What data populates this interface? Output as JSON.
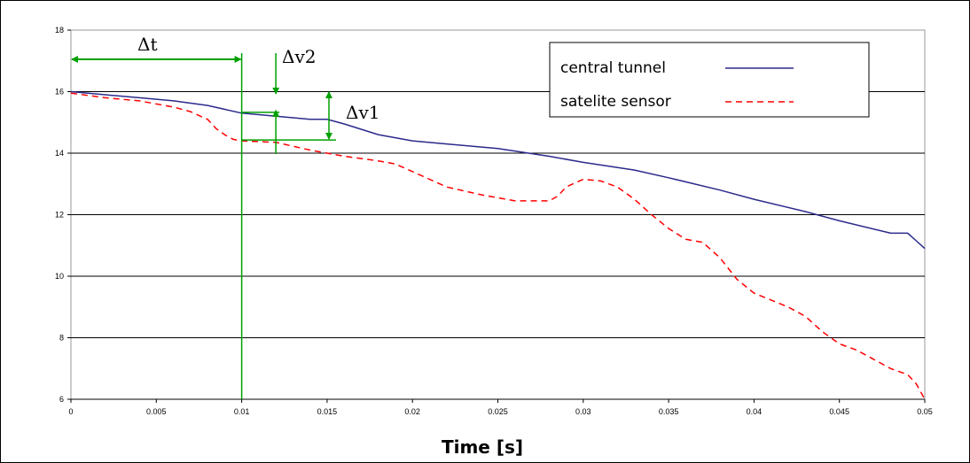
{
  "chart_data": {
    "type": "line",
    "title": "",
    "xlabel": "Time [s]",
    "ylabel": "",
    "xlim": [
      0,
      0.05
    ],
    "ylim": [
      6,
      18
    ],
    "grid": "horizontal",
    "legend_position": "top-right",
    "x_ticks": [
      {
        "value": 0,
        "label": "0"
      },
      {
        "value": 0.005,
        "label": "0.005"
      },
      {
        "value": 0.01,
        "label": "0.01"
      },
      {
        "value": 0.015,
        "label": "0.015"
      },
      {
        "value": 0.02,
        "label": "0.02"
      },
      {
        "value": 0.025,
        "label": "0.025"
      },
      {
        "value": 0.03,
        "label": "0.03"
      },
      {
        "value": 0.035,
        "label": "0.035"
      },
      {
        "value": 0.04,
        "label": "0.04"
      },
      {
        "value": 0.045,
        "label": "0.045"
      },
      {
        "value": 0.05,
        "label": "0.05"
      }
    ],
    "y_ticks": [
      {
        "value": 6,
        "label": "6"
      },
      {
        "value": 8,
        "label": "8"
      },
      {
        "value": 10,
        "label": "10"
      },
      {
        "value": 12,
        "label": "12"
      },
      {
        "value": 14,
        "label": "14"
      },
      {
        "value": 16,
        "label": "16"
      },
      {
        "value": 18,
        "label": "18"
      }
    ],
    "series": [
      {
        "name": "central tunnel",
        "color": "#2a2a8c",
        "style": "solid",
        "points": [
          [
            0,
            16.0
          ],
          [
            0.002,
            15.9
          ],
          [
            0.004,
            15.8
          ],
          [
            0.006,
            15.7
          ],
          [
            0.008,
            15.55
          ],
          [
            0.01,
            15.3
          ],
          [
            0.012,
            15.2
          ],
          [
            0.014,
            15.1
          ],
          [
            0.015,
            15.1
          ],
          [
            0.016,
            14.95
          ],
          [
            0.018,
            14.6
          ],
          [
            0.02,
            14.4
          ],
          [
            0.022,
            14.3
          ],
          [
            0.025,
            14.15
          ],
          [
            0.028,
            13.9
          ],
          [
            0.03,
            13.7
          ],
          [
            0.033,
            13.45
          ],
          [
            0.035,
            13.2
          ],
          [
            0.038,
            12.8
          ],
          [
            0.04,
            12.5
          ],
          [
            0.043,
            12.1
          ],
          [
            0.045,
            11.8
          ],
          [
            0.048,
            11.4
          ],
          [
            0.049,
            11.4
          ],
          [
            0.0495,
            11.15
          ],
          [
            0.05,
            10.9
          ]
        ]
      },
      {
        "name": "satelite sensor",
        "color": "#ff0000",
        "style": "dashed",
        "points": [
          [
            0,
            15.95
          ],
          [
            0.002,
            15.8
          ],
          [
            0.004,
            15.7
          ],
          [
            0.006,
            15.5
          ],
          [
            0.007,
            15.35
          ],
          [
            0.008,
            15.1
          ],
          [
            0.0085,
            14.8
          ],
          [
            0.009,
            14.6
          ],
          [
            0.0095,
            14.45
          ],
          [
            0.01,
            14.4
          ],
          [
            0.012,
            14.35
          ],
          [
            0.014,
            14.1
          ],
          [
            0.015,
            14.0
          ],
          [
            0.016,
            13.9
          ],
          [
            0.018,
            13.75
          ],
          [
            0.019,
            13.65
          ],
          [
            0.02,
            13.4
          ],
          [
            0.022,
            12.9
          ],
          [
            0.024,
            12.65
          ],
          [
            0.026,
            12.45
          ],
          [
            0.028,
            12.45
          ],
          [
            0.0285,
            12.6
          ],
          [
            0.029,
            12.9
          ],
          [
            0.03,
            13.15
          ],
          [
            0.031,
            13.1
          ],
          [
            0.032,
            12.9
          ],
          [
            0.033,
            12.5
          ],
          [
            0.034,
            12.0
          ],
          [
            0.035,
            11.55
          ],
          [
            0.036,
            11.2
          ],
          [
            0.037,
            11.1
          ],
          [
            0.038,
            10.6
          ],
          [
            0.039,
            9.9
          ],
          [
            0.04,
            9.45
          ],
          [
            0.042,
            9.0
          ],
          [
            0.043,
            8.7
          ],
          [
            0.044,
            8.2
          ],
          [
            0.045,
            7.8
          ],
          [
            0.046,
            7.6
          ],
          [
            0.047,
            7.3
          ],
          [
            0.048,
            7.0
          ],
          [
            0.049,
            6.8
          ],
          [
            0.0495,
            6.5
          ],
          [
            0.05,
            6.0
          ]
        ]
      }
    ],
    "annotations": [
      {
        "id": "dt",
        "label": "Δt"
      },
      {
        "id": "dv2",
        "label": "Δv2"
      },
      {
        "id": "dv1",
        "label": "Δv1"
      }
    ],
    "annotation_color": "#00a000"
  }
}
